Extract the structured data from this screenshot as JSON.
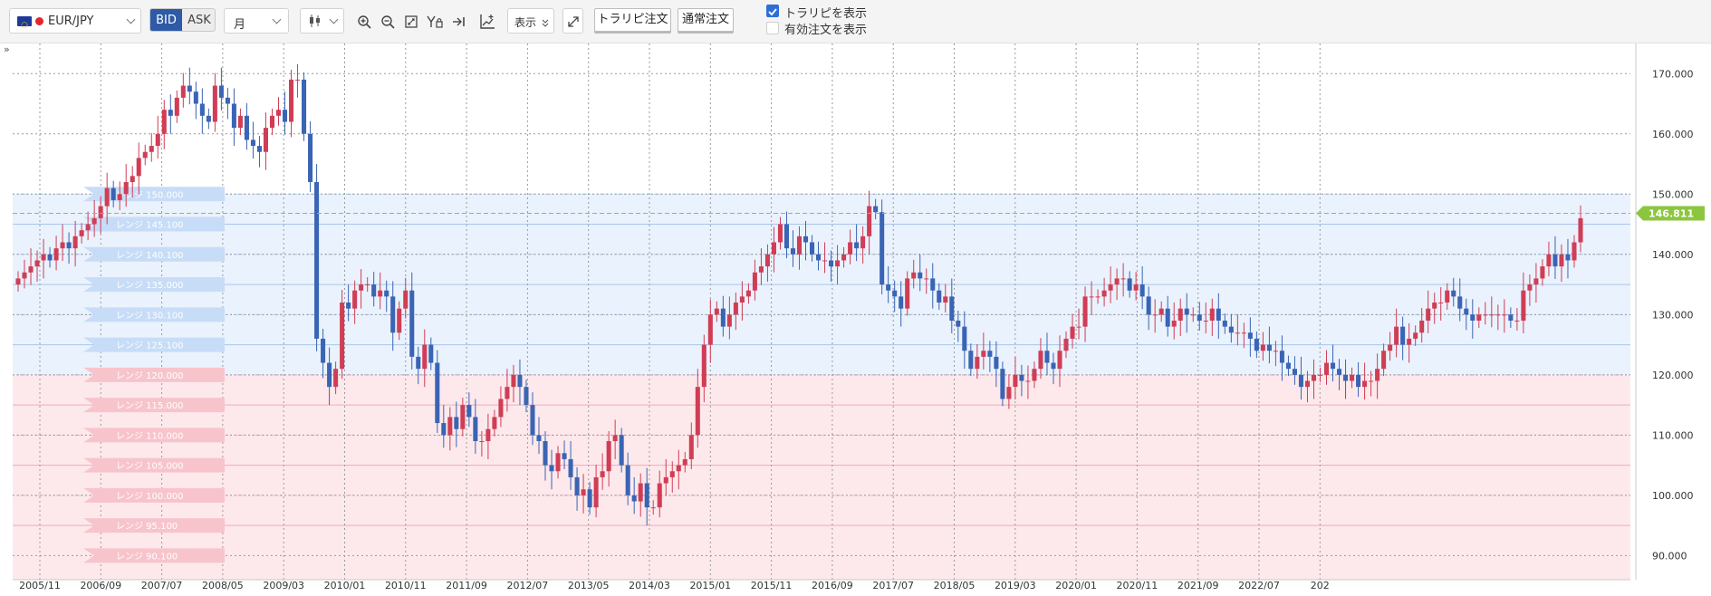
{
  "toolbar": {
    "symbol": "EUR/JPY",
    "bid_label": "BID",
    "ask_label": "ASK",
    "period": "月",
    "display_label": "表示",
    "trap_order_label": "トラリピ注文",
    "normal_order_label": "通常注文",
    "show_trap_label": "トラリピを表示",
    "show_trap_checked": true,
    "show_active_orders_label": "有効注文を表示",
    "show_active_orders_checked": false,
    "expand_glyph": "»"
  },
  "colors": {
    "up": "#d03d55",
    "down": "#3a64b4",
    "buy_zone": "#eaf2fd",
    "sell_zone": "#fde9ec",
    "price_tag": "#8cc63f",
    "accent": "#2e5aa6"
  },
  "icons": [
    "eu-flag-icon",
    "jp-flag-icon",
    "candlestick-icon",
    "zoom-in-icon",
    "zoom-out-icon",
    "fit-icon",
    "price-lock-icon",
    "jump-to-latest-icon",
    "indicator-icon",
    "fullscreen-icon",
    "expand-panel-icon"
  ],
  "chart_data": {
    "type": "candlestick",
    "y_axis": {
      "min": 86,
      "max": 175,
      "ticks": [
        "90.000",
        "100.000",
        "110.000",
        "120.000",
        "130.000",
        "140.000",
        "150.000",
        "160.000",
        "170.000"
      ],
      "tick_values": [
        90,
        100,
        110,
        120,
        130,
        140,
        150,
        160,
        170
      ]
    },
    "x_axis": {
      "labels": [
        "2005/11",
        "2006/09",
        "2007/07",
        "2008/05",
        "2009/03",
        "2010/01",
        "2010/11",
        "2011/09",
        "2012/07",
        "2013/05",
        "2014/03",
        "2015/01",
        "2015/11",
        "2016/09",
        "2017/07",
        "2018/05",
        "2019/03",
        "2020/01",
        "2020/11",
        "2021/09",
        "2022/07",
        "202"
      ]
    },
    "current_price": "146.811",
    "current_value": 146.81,
    "buy_zone": [
      120,
      150
    ],
    "sell_zone": [
      86,
      120
    ],
    "range_labels": [
      {
        "text": "レンジ 150.000",
        "price": 150
      },
      {
        "text": "レンジ 145.100",
        "price": 145
      },
      {
        "text": "レンジ 140.100",
        "price": 140
      },
      {
        "text": "レンジ 135.000",
        "price": 135
      },
      {
        "text": "レンジ 130.100",
        "price": 130
      },
      {
        "text": "レンジ 125.100",
        "price": 125
      },
      {
        "text": "レンジ 120.000",
        "price": 120
      },
      {
        "text": "レンジ 115.000",
        "price": 115
      },
      {
        "text": "レンジ 110.000",
        "price": 110
      },
      {
        "text": "レンジ 105.000",
        "price": 105
      },
      {
        "text": "レンジ 100.000",
        "price": 100
      },
      {
        "text": "レンジ 95.100",
        "price": 95
      },
      {
        "text": "レンジ 90.100",
        "price": 90
      }
    ],
    "candle_spacing_label": "monthly",
    "closes": [
      136,
      137,
      138,
      139,
      140,
      139,
      141,
      142,
      141,
      143,
      144,
      145,
      146,
      148,
      151,
      149,
      150,
      152,
      153,
      156,
      157,
      158,
      160,
      164,
      163,
      166,
      168,
      167,
      165,
      163,
      162,
      168,
      166,
      165,
      161,
      163,
      159,
      158,
      157,
      161,
      163,
      164,
      162,
      169,
      169,
      160,
      152,
      126,
      122,
      118,
      121,
      132,
      131,
      134,
      135,
      135,
      133,
      134,
      133,
      127,
      131,
      134,
      123,
      121,
      125,
      122,
      112,
      110,
      113,
      111,
      115,
      113,
      109,
      109,
      111,
      113,
      116,
      118,
      120,
      118,
      115,
      110,
      109,
      105,
      104,
      107,
      106,
      103,
      100,
      101,
      98,
      103,
      104,
      109,
      110,
      105,
      100,
      99,
      102,
      98,
      98,
      102,
      103,
      104,
      105,
      106,
      110,
      118,
      125,
      130,
      131,
      128,
      130,
      132,
      133,
      134,
      137,
      138,
      140,
      142,
      145,
      141,
      140,
      143,
      142,
      140,
      139,
      139,
      138,
      139,
      140,
      142,
      141,
      143,
      148,
      147,
      135,
      134,
      133,
      131,
      136,
      137,
      136,
      136,
      134,
      132,
      133,
      129,
      128,
      124,
      121,
      123,
      124,
      123,
      121,
      116,
      118,
      120,
      119,
      119,
      121,
      124,
      122,
      121,
      124,
      126,
      128,
      128,
      133,
      133,
      133,
      134,
      135,
      136,
      136,
      134,
      135,
      133,
      130,
      130,
      131,
      128,
      129,
      131,
      130,
      130,
      129,
      129,
      131,
      129,
      128,
      127,
      127,
      127,
      126,
      124,
      125,
      124,
      124,
      122,
      121,
      120,
      118,
      119,
      120,
      120,
      122,
      121,
      120,
      119,
      120,
      118,
      119,
      119,
      121,
      124,
      125,
      128,
      125,
      126,
      127,
      129,
      131,
      132,
      132,
      134,
      133,
      131,
      130,
      129,
      130,
      130,
      130,
      130,
      130,
      129,
      129,
      134,
      135,
      136,
      138,
      140,
      138,
      140,
      139,
      142,
      146
    ]
  }
}
